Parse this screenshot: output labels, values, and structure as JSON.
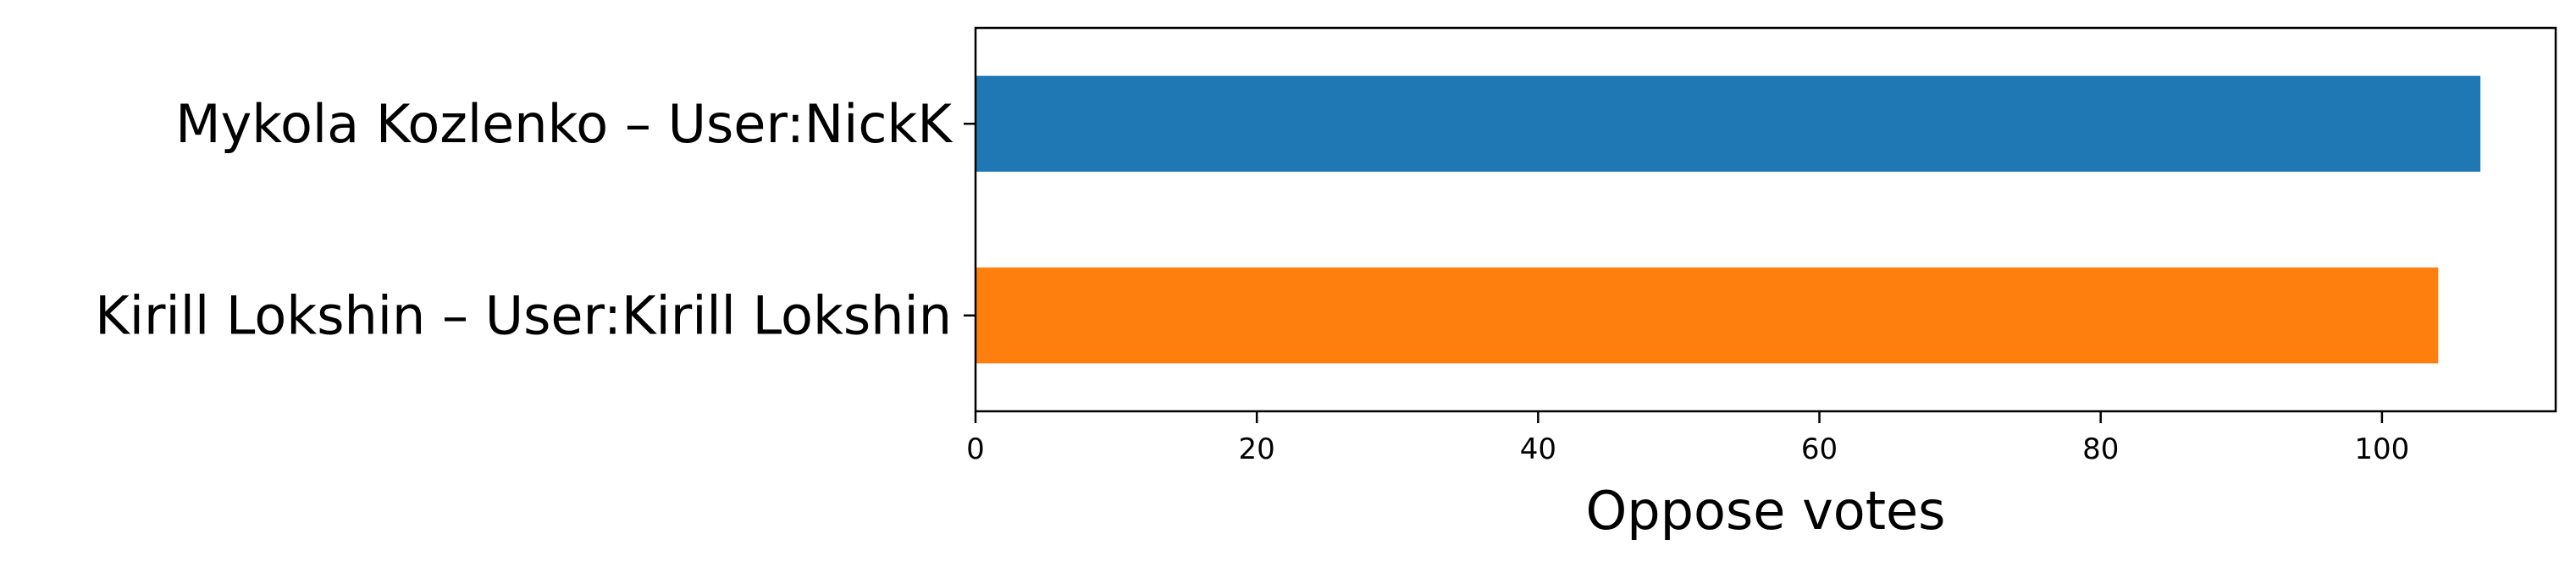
{
  "chart_data": {
    "type": "bar",
    "orientation": "horizontal",
    "categories": [
      "Mykola Kozlenko – User:NickK",
      "Kirill Lokshin – User:Kirill Lokshin"
    ],
    "values": [
      107,
      104
    ],
    "colors": [
      "#1f77b4",
      "#ff7f0e"
    ],
    "xlabel": "Oppose votes",
    "ylabel": "",
    "title": "",
    "xlim": [
      0,
      112.35
    ],
    "xticks": [
      0,
      20,
      40,
      60,
      80,
      100
    ],
    "grid": false,
    "legend": "none"
  }
}
